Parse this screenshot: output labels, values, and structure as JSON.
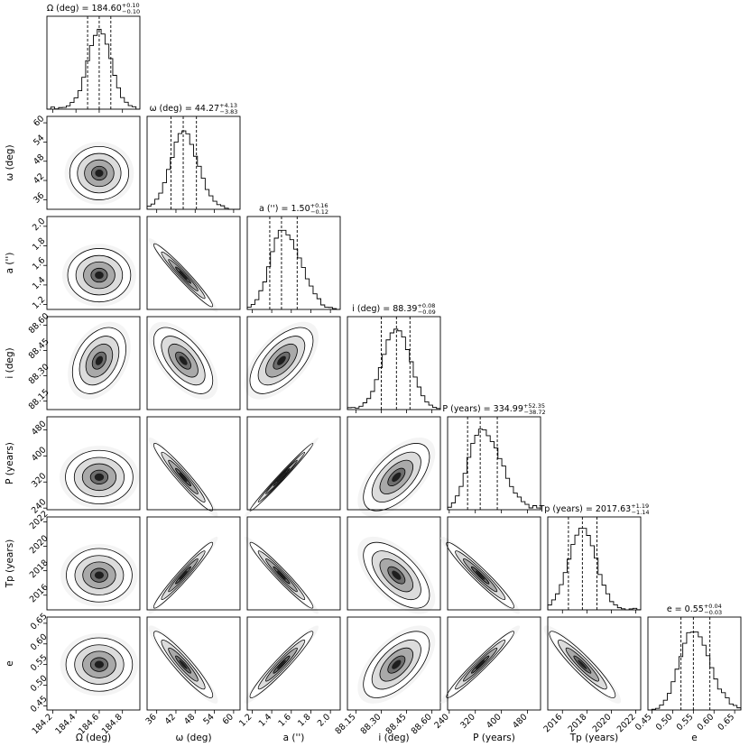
{
  "chart_data": {
    "type": "corner",
    "parameters": [
      {
        "key": "Omega",
        "xlabel": "Ω (deg)",
        "ylabel": "",
        "title_pre": "Ω (deg) = ",
        "median": "184.60",
        "plus": "+0.10",
        "minus": "−0.10",
        "center": 184.6,
        "sigma": 0.1,
        "skew": 0,
        "range": [
          184.15,
          184.95
        ],
        "ticks": [
          184.2,
          184.4,
          184.6,
          184.8
        ],
        "ticklabels": [
          "184.2",
          "184.4",
          "184.6",
          "184.8"
        ]
      },
      {
        "key": "omega",
        "xlabel": "ω (deg)",
        "ylabel": "ω (deg)",
        "title_pre": "ω (deg) = ",
        "median": "44.27",
        "plus": "+4.13",
        "minus": "−3.83",
        "center": 44.27,
        "sigma": 4.0,
        "skew": 0.1,
        "range": [
          33,
          62
        ],
        "ticks": [
          36,
          42,
          48,
          54,
          60
        ],
        "ticklabels": [
          "36",
          "42",
          "48",
          "54",
          "60"
        ]
      },
      {
        "key": "a",
        "xlabel": "a ('')",
        "ylabel": "a ('')",
        "title_pre": "a ('') = ",
        "median": "1.50",
        "plus": "+0.16",
        "minus": "−0.12",
        "center": 1.5,
        "sigma": 0.14,
        "skew": 0.35,
        "range": [
          1.15,
          2.1
        ],
        "ticks": [
          1.2,
          1.4,
          1.6,
          1.8,
          2.0
        ],
        "ticklabels": [
          "1.2",
          "1.4",
          "1.6",
          "1.8",
          "2.0"
        ]
      },
      {
        "key": "i",
        "xlabel": "i (deg)",
        "ylabel": "i (deg)",
        "title_pre": "i (deg) = ",
        "median": "88.39",
        "plus": "+0.08",
        "minus": "−0.09",
        "center": 88.39,
        "sigma": 0.085,
        "skew": 0,
        "range": [
          88.1,
          88.65
        ],
        "ticks": [
          88.15,
          88.3,
          88.45,
          88.6
        ],
        "ticklabels": [
          "88.15",
          "88.30",
          "88.45",
          "88.60"
        ]
      },
      {
        "key": "P",
        "xlabel": "P (years)",
        "ylabel": "P (years)",
        "title_pre": "P (years) = ",
        "median": "334.99",
        "plus": "+52.35",
        "minus": "−38.72",
        "center": 335,
        "sigma": 45,
        "skew": 0.4,
        "range": [
          235,
          520
        ],
        "ticks": [
          240,
          320,
          400,
          480
        ],
        "ticklabels": [
          "240",
          "320",
          "400",
          "480"
        ]
      },
      {
        "key": "Tp",
        "xlabel": "Tp (years)",
        "ylabel": "Tp (years)",
        "title_pre": "Tp (years) = ",
        "median": "2017.63",
        "plus": "+1.19",
        "minus": "−1.14",
        "center": 2017.63,
        "sigma": 1.17,
        "skew": 0,
        "range": [
          2014.8,
          2022.4
        ],
        "ticks": [
          2016,
          2018,
          2020,
          2022
        ],
        "ticklabels": [
          "2016",
          "2018",
          "2020",
          "2022"
        ]
      },
      {
        "key": "e",
        "xlabel": "e",
        "ylabel": "e",
        "title_pre": "e = ",
        "median": "0.55",
        "plus": "+0.04",
        "minus": "−0.03",
        "center": 0.55,
        "sigma": 0.035,
        "skew": 0.15,
        "range": [
          0.44,
          0.665
        ],
        "ticks": [
          0.45,
          0.5,
          0.55,
          0.6,
          0.65
        ],
        "ticklabels": [
          "0.45",
          "0.50",
          "0.55",
          "0.60",
          "0.65"
        ]
      }
    ],
    "correlations": [
      [
        1,
        0,
        0,
        0.35,
        0,
        0,
        0
      ],
      [
        0,
        1,
        -0.97,
        -0.6,
        -0.96,
        0.97,
        -0.93
      ],
      [
        0,
        -0.97,
        1,
        0.6,
        0.99,
        -0.97,
        0.96
      ],
      [
        0.35,
        -0.6,
        0.6,
        1,
        0.6,
        -0.6,
        0.6
      ],
      [
        0,
        -0.96,
        0.99,
        0.6,
        1,
        -0.96,
        0.97
      ],
      [
        0,
        0.97,
        -0.97,
        -0.6,
        -0.96,
        1,
        -0.93
      ],
      [
        0,
        -0.93,
        0.96,
        0.6,
        0.97,
        -0.93,
        1
      ]
    ]
  }
}
